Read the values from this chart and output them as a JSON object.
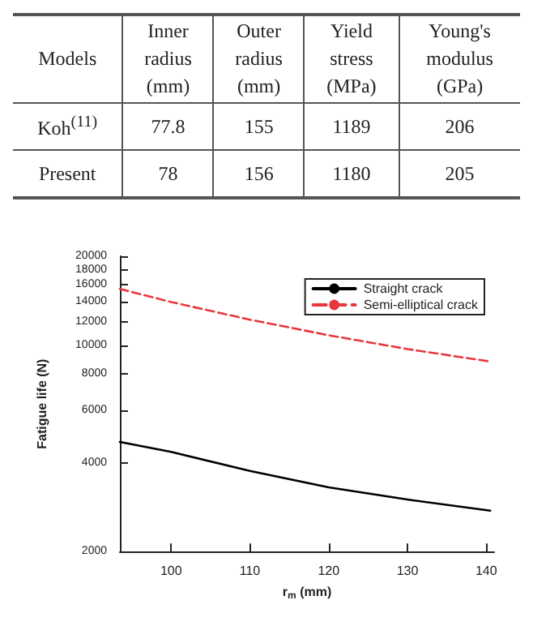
{
  "chart_data": [
    {
      "type": "other",
      "categories": [
        "Models",
        "Inner\nradius\n(mm)",
        "Outer\nradius\n(mm)",
        "Yield\nstress\n(MPa)",
        "Young's\nmodulus\n(GPa)"
      ],
      "annotations": [
        "Koh$^{(11)}$",
        "77.8",
        "155",
        "1189",
        "206",
        "Present",
        "78",
        "156",
        "1180",
        "205"
      ]
    },
    {
      "type": "line",
      "xlabel": "r$_{m}$ (mm)",
      "ylabel": "Fatigue life (N)",
      "log": "y",
      "legend": "top right",
      "marker": "none",
      "xlim": [
        93.5,
        141
      ],
      "xticks": [
        100,
        110,
        120,
        130,
        140
      ],
      "ylim": [
        2000,
        20000
      ],
      "yticks": [
        2000,
        4000,
        6000,
        8000,
        10000,
        12000,
        14000,
        16000,
        18000,
        20000
      ],
      "x": [
        93.5,
        100,
        110,
        120,
        130,
        140.5
      ],
      "series": [
        {
          "name": "Straight crack",
          "color": "#000000",
          "line_style": "solid",
          "values": [
            4700,
            4350,
            3750,
            3300,
            3000,
            2750
          ]
        },
        {
          "name": "Semi-elliptical crack",
          "color": "#e8383d",
          "line_style": "dashed",
          "values": [
            15500,
            14000,
            12200,
            10800,
            9700,
            8800
          ]
        }
      ]
    }
  ]
}
